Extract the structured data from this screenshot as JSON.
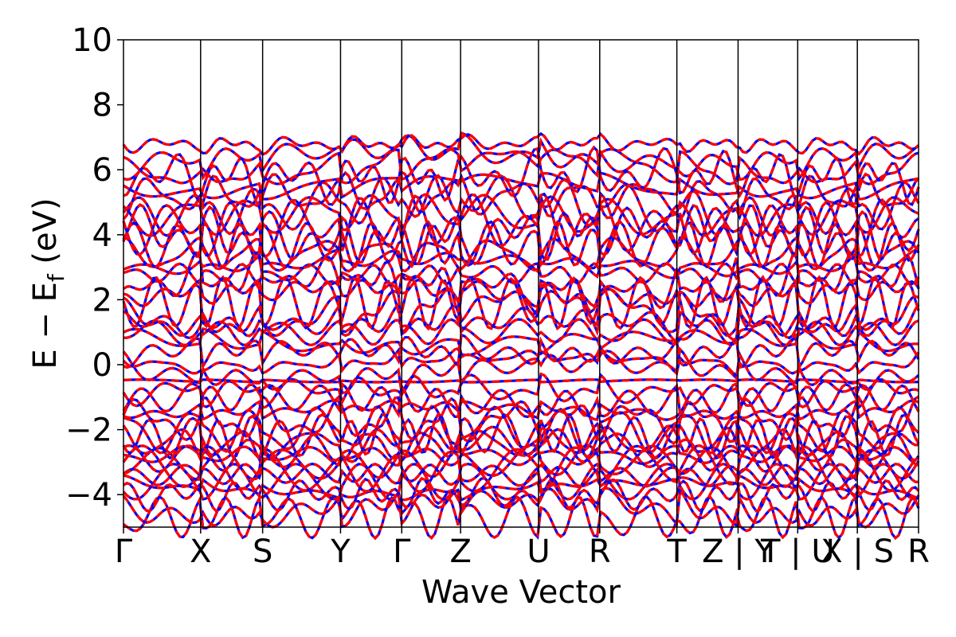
{
  "chart_data": {
    "type": "line",
    "title": "",
    "xlabel": "Wave Vector",
    "ylabel": {
      "main": "E − E",
      "sub": "f",
      "unit": " (eV)"
    },
    "ylim": [
      -5,
      10
    ],
    "yticks": [
      10,
      8,
      6,
      4,
      2,
      0,
      -2,
      -4
    ],
    "ytick_labels": [
      "10",
      "8",
      "6",
      "4",
      "2",
      "0",
      "−2",
      "−4"
    ],
    "kpath": {
      "labels": [
        "Γ",
        "X",
        "S",
        "Y",
        "Γ",
        "Z",
        "U",
        "R",
        "T",
        "Z",
        "Y",
        "T",
        "U",
        "X",
        "S",
        "R"
      ],
      "tick_labels": [
        "Γ",
        "X",
        "S",
        "Y",
        "Γ",
        "Z",
        "U",
        "R",
        "T",
        "Z|Y",
        "T|U",
        "X|S",
        "R"
      ],
      "tick_positions": [
        0.0,
        0.097,
        0.175,
        0.273,
        0.35,
        0.424,
        0.522,
        0.599,
        0.696,
        0.773,
        0.848,
        0.923,
        1.0
      ]
    },
    "grid": false,
    "legend": "none",
    "series": [
      {
        "style": "solid",
        "color": "#0000ff"
      },
      {
        "style": "dashed",
        "color": "#ff0000"
      }
    ],
    "bands": {
      "description": "dense set of electronic bands; blue solid and red dashed overlap",
      "approx_levels_eV": [
        -4.7,
        -4.4,
        -4.0,
        -3.8,
        -3.6,
        -3.4,
        -3.2,
        -3.0,
        -2.8,
        -2.6,
        -2.4,
        -2.2,
        -2.0,
        -1.7,
        -1.4,
        -1.1,
        -0.8,
        -0.5,
        -0.2,
        0.1,
        0.4,
        0.7,
        1.0,
        1.3,
        1.6,
        1.9,
        2.2,
        2.5,
        2.8,
        3.1,
        3.4,
        3.7,
        4.0,
        4.3,
        4.6,
        4.9,
        5.2,
        5.5,
        5.8,
        6.1,
        6.4,
        6.8
      ]
    }
  }
}
